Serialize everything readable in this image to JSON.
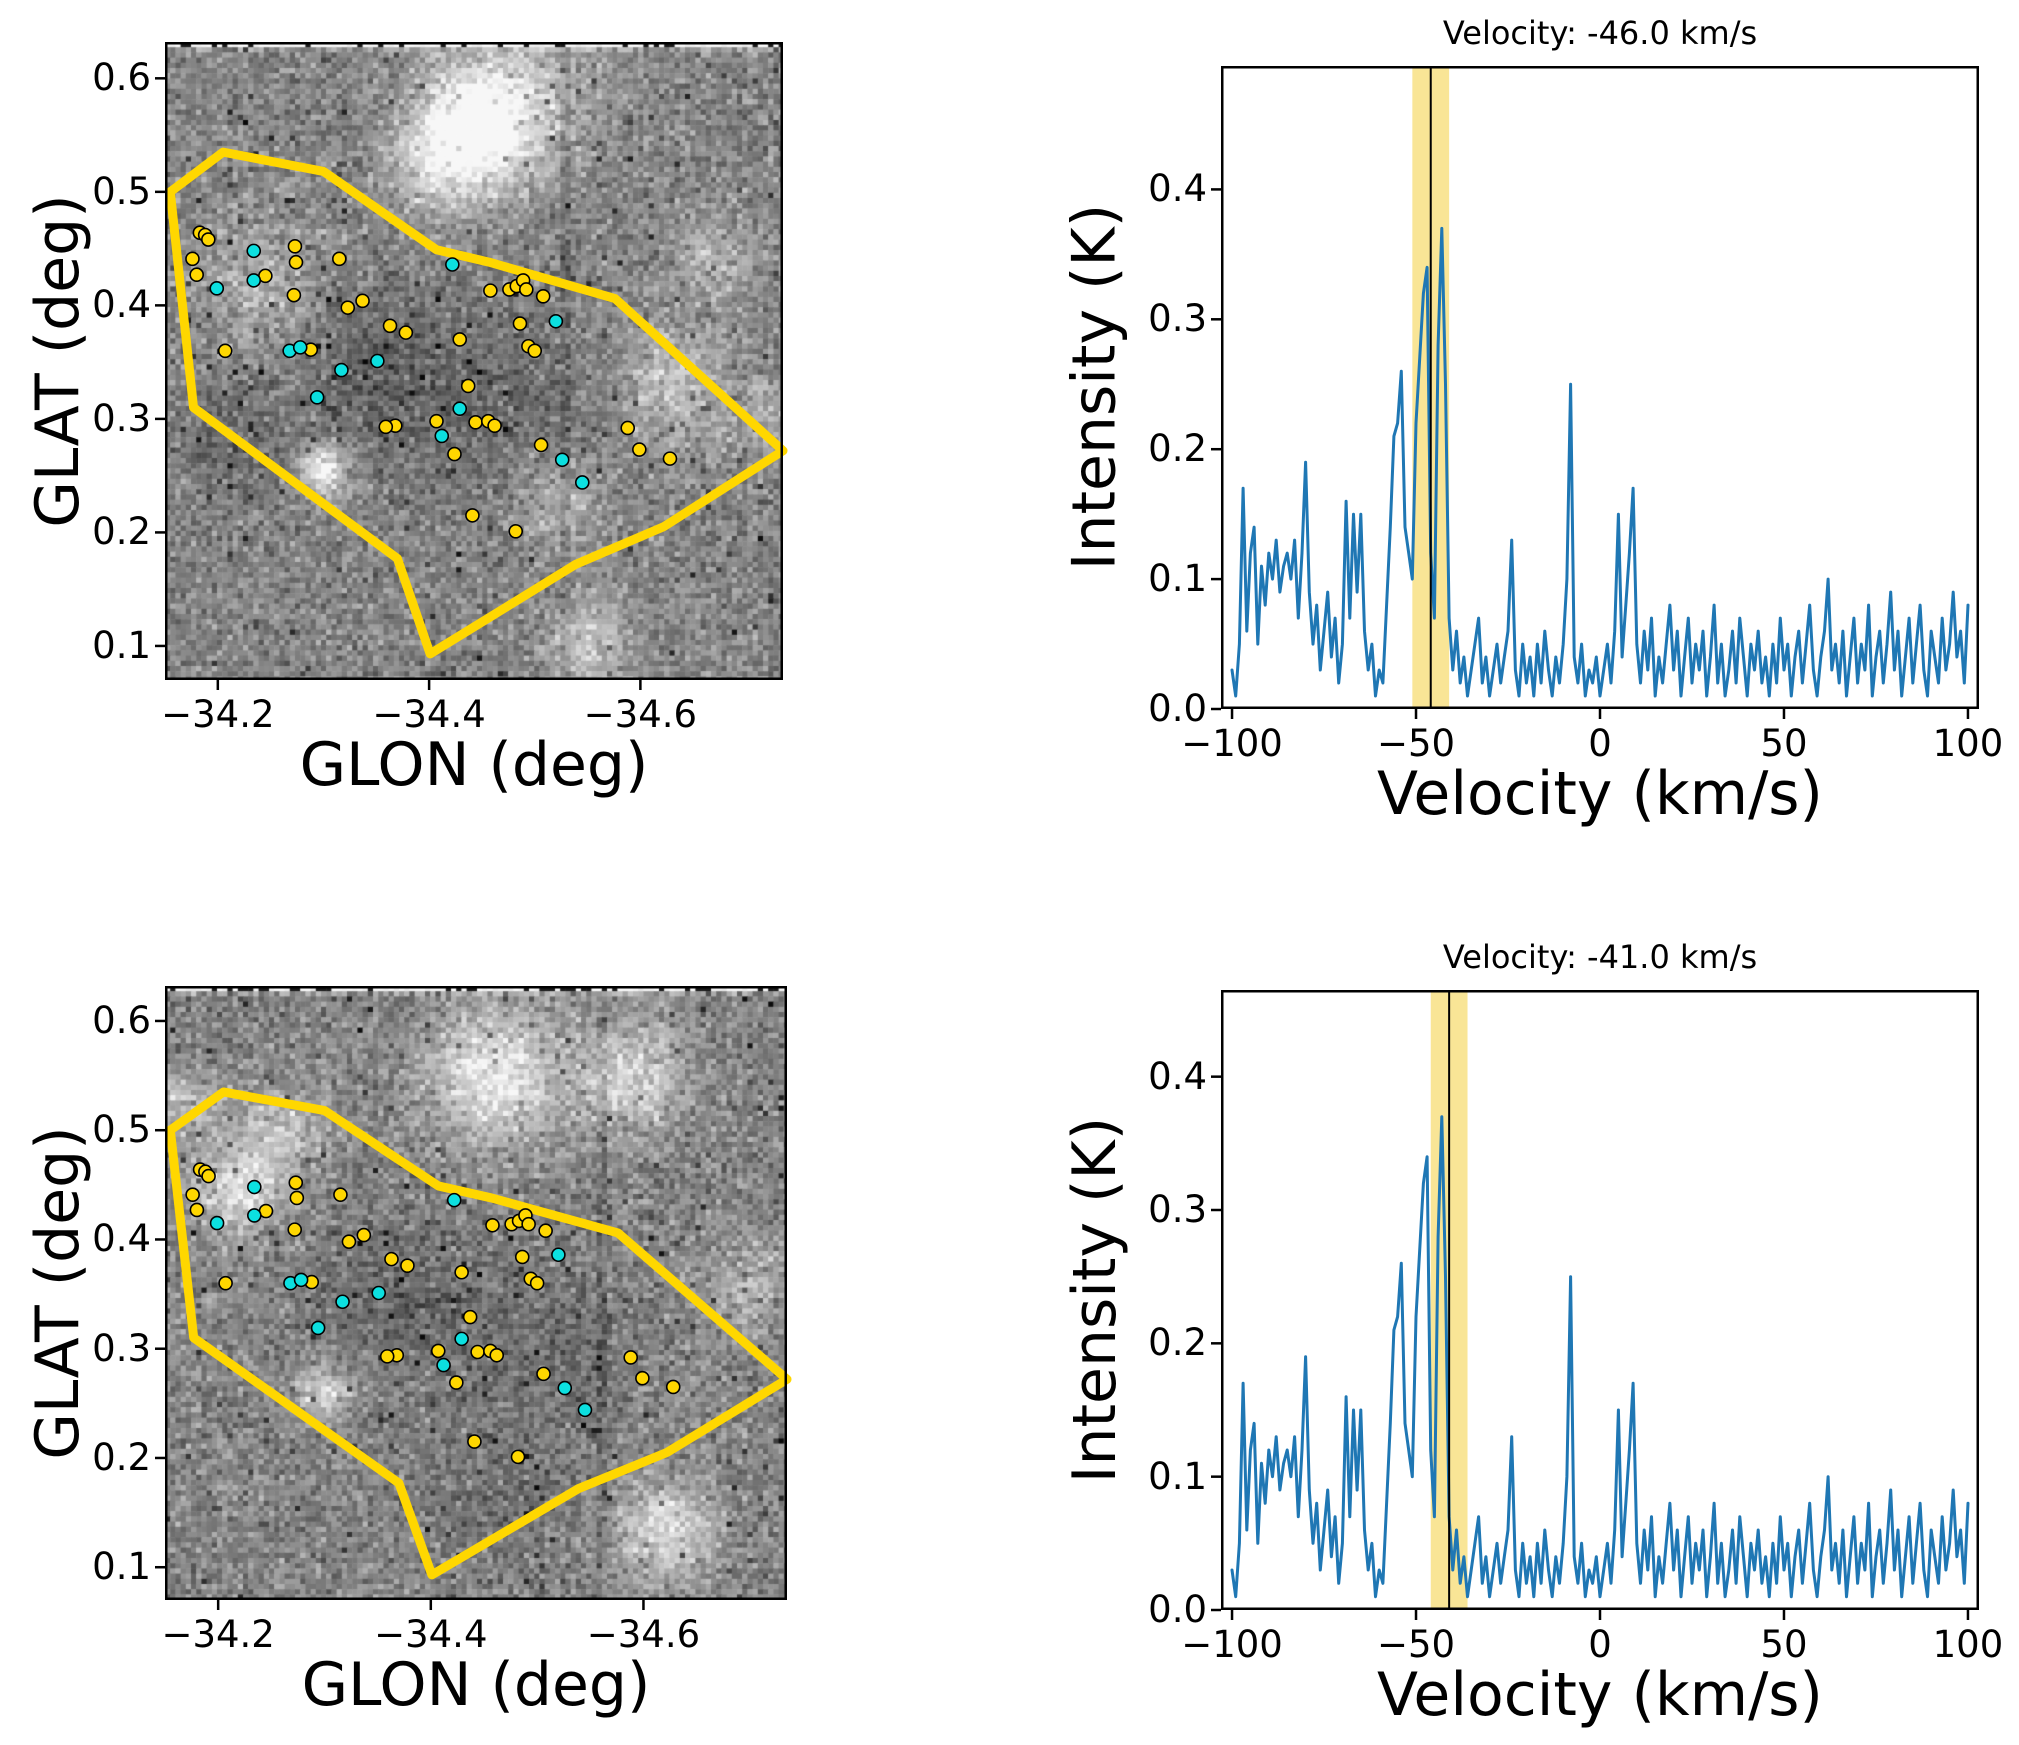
{
  "chart_data": {
    "maps": {
      "type": "heatmap",
      "description": "Grayscale channel map with clump region polygon and clump markers",
      "xlabel": "GLON (deg)",
      "ylabel": "GLAT (deg)",
      "xlim": [
        -34.15,
        -34.735
      ],
      "ylim": [
        0.07,
        0.632
      ],
      "x_axis_inverted": true,
      "xticks": [
        -34.2,
        -34.4,
        -34.6
      ],
      "xtick_labels": [
        "−34.2",
        "−34.4",
        "−34.6"
      ],
      "yticks": [
        0.6,
        0.5,
        0.4,
        0.3,
        0.2,
        0.1
      ],
      "ytick_labels": [
        "0.6",
        "0.5",
        "0.4",
        "0.3",
        "0.2",
        "0.1"
      ],
      "polygon_glon_glat": [
        [
          -34.155,
          0.5
        ],
        [
          -34.205,
          0.535
        ],
        [
          -34.3,
          0.518
        ],
        [
          -34.407,
          0.449
        ],
        [
          -34.457,
          0.438
        ],
        [
          -34.576,
          0.406
        ],
        [
          -34.735,
          0.272
        ],
        [
          -34.622,
          0.205
        ],
        [
          -34.539,
          0.172
        ],
        [
          -34.401,
          0.093
        ],
        [
          -34.37,
          0.177
        ],
        [
          -34.177,
          0.31
        ]
      ],
      "clumps_yellow": [
        [
          -34.183,
          0.464
        ],
        [
          -34.188,
          0.462
        ],
        [
          -34.191,
          0.458
        ],
        [
          -34.176,
          0.441
        ],
        [
          -34.18,
          0.427
        ],
        [
          -34.245,
          0.426
        ],
        [
          -34.273,
          0.452
        ],
        [
          -34.274,
          0.438
        ],
        [
          -34.272,
          0.409
        ],
        [
          -34.315,
          0.441
        ],
        [
          -34.323,
          0.398
        ],
        [
          -34.337,
          0.404
        ],
        [
          -34.207,
          0.36
        ],
        [
          -34.288,
          0.361
        ],
        [
          -34.363,
          0.382
        ],
        [
          -34.378,
          0.376
        ],
        [
          -34.429,
          0.37
        ],
        [
          -34.407,
          0.298
        ],
        [
          -34.368,
          0.294
        ],
        [
          -34.359,
          0.293
        ],
        [
          -34.424,
          0.269
        ],
        [
          -34.437,
          0.329
        ],
        [
          -34.444,
          0.297
        ],
        [
          -34.456,
          0.298
        ],
        [
          -34.462,
          0.294
        ],
        [
          -34.458,
          0.413
        ],
        [
          -34.476,
          0.414
        ],
        [
          -34.483,
          0.417
        ],
        [
          -34.489,
          0.422
        ],
        [
          -34.492,
          0.414
        ],
        [
          -34.508,
          0.408
        ],
        [
          -34.486,
          0.384
        ],
        [
          -34.494,
          0.364
        ],
        [
          -34.5,
          0.36
        ],
        [
          -34.506,
          0.277
        ],
        [
          -34.441,
          0.215
        ],
        [
          -34.482,
          0.201
        ],
        [
          -34.588,
          0.292
        ],
        [
          -34.599,
          0.273
        ],
        [
          -34.628,
          0.265
        ]
      ],
      "clumps_cyan": [
        [
          -34.199,
          0.415
        ],
        [
          -34.234,
          0.448
        ],
        [
          -34.234,
          0.422
        ],
        [
          -34.268,
          0.36
        ],
        [
          -34.278,
          0.363
        ],
        [
          -34.317,
          0.343
        ],
        [
          -34.351,
          0.351
        ],
        [
          -34.294,
          0.319
        ],
        [
          -34.422,
          0.436
        ],
        [
          -34.412,
          0.285
        ],
        [
          -34.429,
          0.309
        ],
        [
          -34.52,
          0.386
        ],
        [
          -34.526,
          0.264
        ],
        [
          -34.545,
          0.244
        ]
      ],
      "panels": [
        {
          "id": "map-top",
          "noise_seed": 42,
          "dark_column_glon": -34.53,
          "bright_blobs": [
            [
              -34.44,
              0.555,
              0.035,
              0.5
            ],
            [
              -34.48,
              0.58,
              0.05,
              0.25
            ],
            [
              -34.4,
              0.52,
              0.03,
              0.2
            ],
            [
              -34.3,
              0.255,
              0.016,
              0.45
            ],
            [
              -34.63,
              0.33,
              0.035,
              0.22
            ],
            [
              -34.52,
              0.225,
              0.03,
              0.18
            ],
            [
              -34.55,
              0.105,
              0.025,
              0.28
            ],
            [
              -34.24,
              0.42,
              0.04,
              0.15
            ],
            [
              -34.67,
              0.44,
              0.03,
              0.15
            ],
            [
              -34.72,
              0.3,
              0.025,
              0.15
            ],
            [
              -34.35,
              0.345,
              0.05,
              -0.14
            ],
            [
              -34.47,
              0.3,
              0.06,
              -0.1
            ],
            [
              -34.21,
              0.28,
              0.04,
              -0.1
            ]
          ]
        },
        {
          "id": "map-bottom",
          "noise_seed": 1337,
          "dark_column_glon": -34.56,
          "bright_blobs": [
            [
              -34.46,
              0.55,
              0.045,
              0.38
            ],
            [
              -34.59,
              0.55,
              0.035,
              0.3
            ],
            [
              -34.22,
              0.445,
              0.03,
              0.32
            ],
            [
              -34.26,
              0.5,
              0.03,
              0.22
            ],
            [
              -34.3,
              0.26,
              0.018,
              0.32
            ],
            [
              -34.62,
              0.135,
              0.03,
              0.35
            ],
            [
              -34.7,
              0.36,
              0.03,
              0.18
            ],
            [
              -34.16,
              0.52,
              0.025,
              0.2
            ],
            [
              -34.38,
              0.35,
              0.055,
              -0.13
            ],
            [
              -34.52,
              0.3,
              0.05,
              -0.09
            ],
            [
              -34.46,
              0.17,
              0.05,
              -0.08
            ]
          ]
        }
      ]
    },
    "spectra": {
      "type": "line",
      "xlabel": "Velocity (km/s)",
      "ylabel": "Intensity (K)",
      "xticks": [
        -100,
        -50,
        0,
        50,
        100
      ],
      "xtick_labels": [
        "−100",
        "−50",
        "0",
        "50",
        "100"
      ],
      "yticks": [
        0.4,
        0.3,
        0.2,
        0.1,
        0.0
      ],
      "ytick_labels": [
        "0.4",
        "0.3",
        "0.2",
        "0.1",
        "0.0"
      ],
      "x_start": -100,
      "x_step": 1.0,
      "intensity_K": [
        0.03,
        0.01,
        0.05,
        0.17,
        0.06,
        0.12,
        0.14,
        0.05,
        0.11,
        0.08,
        0.12,
        0.1,
        0.13,
        0.09,
        0.11,
        0.12,
        0.1,
        0.13,
        0.07,
        0.12,
        0.19,
        0.09,
        0.05,
        0.08,
        0.03,
        0.06,
        0.09,
        0.04,
        0.07,
        0.02,
        0.05,
        0.16,
        0.07,
        0.15,
        0.09,
        0.15,
        0.06,
        0.03,
        0.05,
        0.01,
        0.03,
        0.02,
        0.08,
        0.14,
        0.21,
        0.22,
        0.26,
        0.14,
        0.12,
        0.1,
        0.22,
        0.27,
        0.32,
        0.34,
        0.12,
        0.07,
        0.28,
        0.37,
        0.25,
        0.07,
        0.03,
        0.06,
        0.02,
        0.04,
        0.01,
        0.03,
        0.05,
        0.07,
        0.02,
        0.04,
        0.01,
        0.03,
        0.05,
        0.02,
        0.04,
        0.06,
        0.13,
        0.03,
        0.01,
        0.05,
        0.02,
        0.04,
        0.01,
        0.05,
        0.02,
        0.06,
        0.03,
        0.01,
        0.04,
        0.02,
        0.05,
        0.1,
        0.25,
        0.04,
        0.02,
        0.05,
        0.01,
        0.03,
        0.02,
        0.04,
        0.01,
        0.03,
        0.05,
        0.02,
        0.06,
        0.15,
        0.04,
        0.08,
        0.12,
        0.17,
        0.05,
        0.02,
        0.06,
        0.03,
        0.07,
        0.01,
        0.04,
        0.02,
        0.05,
        0.08,
        0.03,
        0.06,
        0.01,
        0.04,
        0.07,
        0.02,
        0.05,
        0.03,
        0.06,
        0.01,
        0.04,
        0.08,
        0.02,
        0.05,
        0.01,
        0.03,
        0.06,
        0.02,
        0.07,
        0.04,
        0.01,
        0.05,
        0.03,
        0.06,
        0.02,
        0.04,
        0.01,
        0.05,
        0.02,
        0.07,
        0.03,
        0.05,
        0.01,
        0.04,
        0.06,
        0.02,
        0.05,
        0.08,
        0.03,
        0.01,
        0.04,
        0.06,
        0.1,
        0.03,
        0.05,
        0.02,
        0.06,
        0.01,
        0.04,
        0.07,
        0.02,
        0.05,
        0.03,
        0.08,
        0.01,
        0.04,
        0.06,
        0.02,
        0.05,
        0.09,
        0.03,
        0.06,
        0.01,
        0.04,
        0.07,
        0.02,
        0.05,
        0.08,
        0.03,
        0.01,
        0.06,
        0.04,
        0.02,
        0.07,
        0.03,
        0.05,
        0.09,
        0.04,
        0.06,
        0.02,
        0.08
      ],
      "panels": [
        {
          "id": "spec-top",
          "title": "Velocity: -46.0 km/s",
          "marker_velocity_kms": -46.0,
          "band_kms": [
            -51,
            -41
          ],
          "xlim": [
            -103,
            103
          ],
          "ylim": [
            0,
            0.495
          ]
        },
        {
          "id": "spec-bottom",
          "title": "Velocity: -41.0 km/s",
          "marker_velocity_kms": -41.0,
          "band_kms": [
            -46,
            -36
          ],
          "xlim": [
            -103,
            103
          ],
          "ylim": [
            0,
            0.465
          ]
        }
      ]
    },
    "colors": {
      "spectrum_line": "#1f77b4",
      "velocity_band_fill": "rgba(244,208,63,0.55)",
      "velocity_marker_line": "#000000",
      "polygon": "#ffd700",
      "clump_yellow": "#ffd700",
      "clump_cyan": "#0ce0e0",
      "axes": "#000000"
    }
  }
}
